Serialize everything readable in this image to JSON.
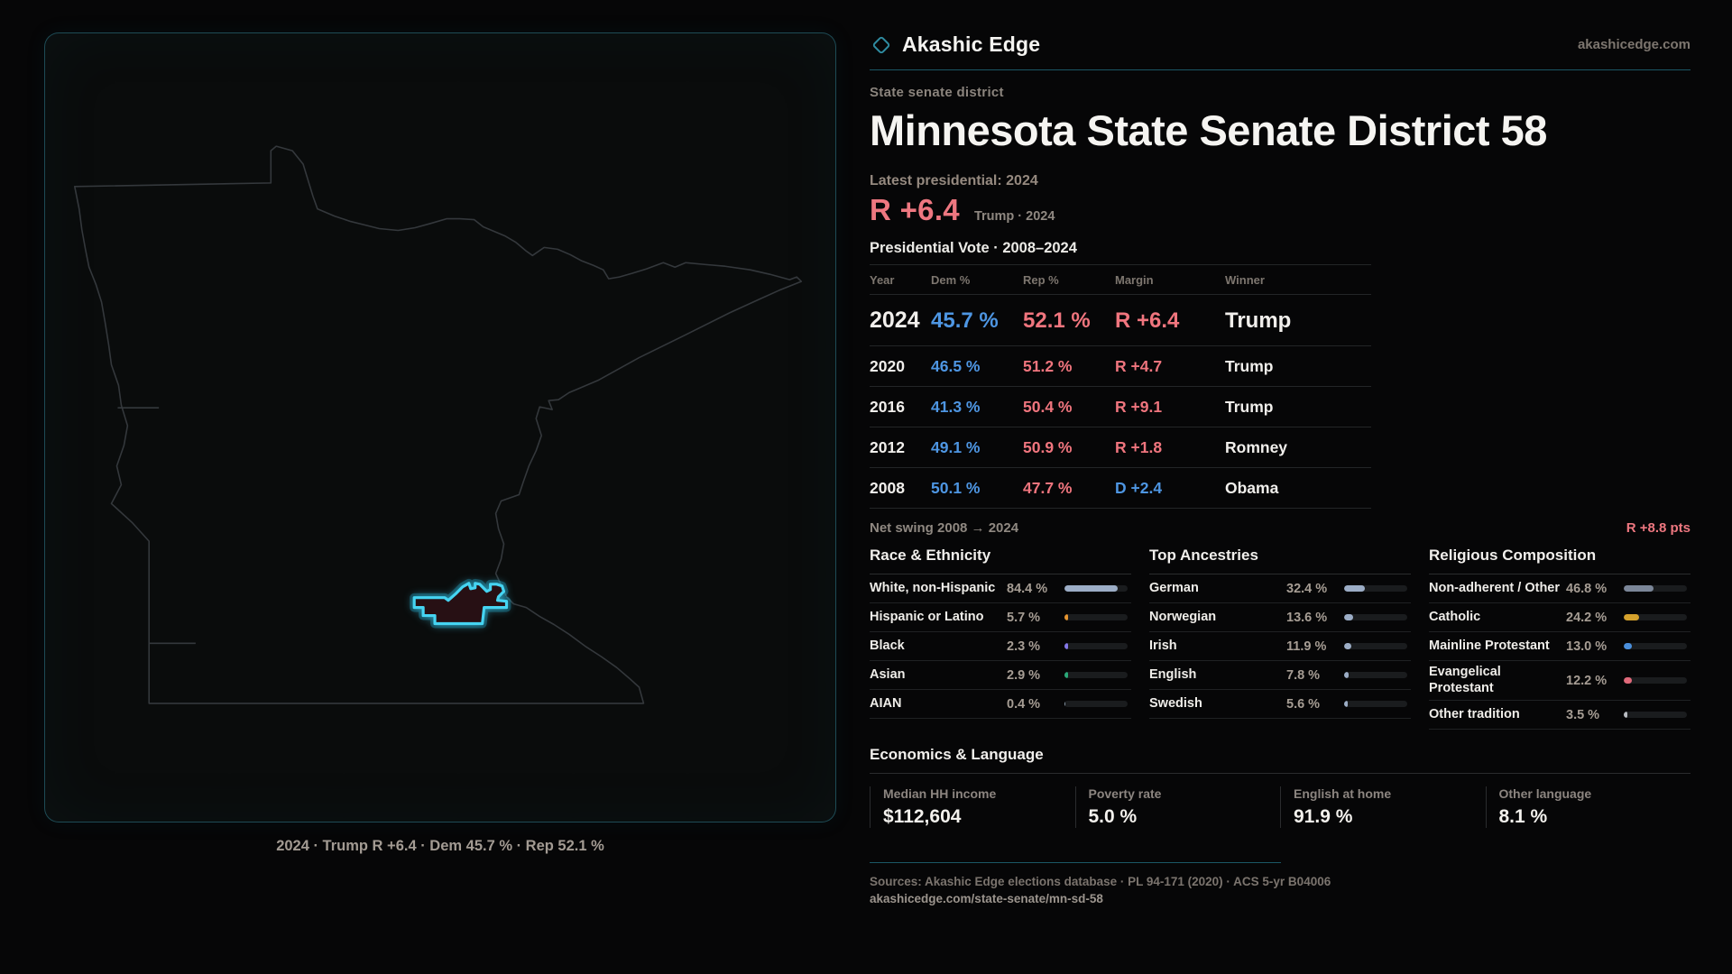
{
  "brand": {
    "name": "Akashic Edge",
    "domain": "akashicedge.com",
    "accent_teal": "#3ecdee",
    "accent_red": "#ee7780",
    "accent_blue": "#4e96e3"
  },
  "page": {
    "kicker": "State senate district",
    "title": "Minnesota State Senate District 58",
    "latest_label": "Latest presidential: 2024",
    "swing_value": "R +6.4",
    "swing_caption": "Trump · 2024",
    "table_title": "Presidential Vote · 2008–2024"
  },
  "map": {
    "caption": "2024 · Trump R +6.4 · Dem 45.7 % · Rep 52.1 %",
    "district_fill": "#271014",
    "district_stroke": "#45d4f2",
    "state_outline_color": "#34383c"
  },
  "vote_table": {
    "headers": [
      "Year",
      "Dem %",
      "Rep %",
      "Margin",
      "Winner"
    ],
    "rows": [
      {
        "year": "2024",
        "dem": "45.7 %",
        "rep": "52.1 %",
        "margin": "R +6.4",
        "margin_party": "R",
        "winner": "Trump",
        "highlight": true
      },
      {
        "year": "2020",
        "dem": "46.5 %",
        "rep": "51.2 %",
        "margin": "R +4.7",
        "margin_party": "R",
        "winner": "Trump",
        "highlight": false
      },
      {
        "year": "2016",
        "dem": "41.3 %",
        "rep": "50.4 %",
        "margin": "R +9.1",
        "margin_party": "R",
        "winner": "Trump",
        "highlight": false
      },
      {
        "year": "2012",
        "dem": "49.1 %",
        "rep": "50.9 %",
        "margin": "R +1.8",
        "margin_party": "R",
        "winner": "Romney",
        "highlight": false
      },
      {
        "year": "2008",
        "dem": "50.1 %",
        "rep": "47.7 %",
        "margin": "D +2.4",
        "margin_party": "D",
        "winner": "Obama",
        "highlight": false
      }
    ]
  },
  "net_swing": {
    "label": "Net swing 2008 → 2024",
    "value": "R +8.8 pts"
  },
  "demographics": [
    {
      "title": "Race & Ethnicity",
      "rows": [
        {
          "label": "White, non-Hispanic",
          "value": "84.4 %",
          "pct": 84.4,
          "color": "#9cadc6"
        },
        {
          "label": "Hispanic or Latino",
          "value": "5.7 %",
          "pct": 5.7,
          "color": "#e5942f"
        },
        {
          "label": "Black",
          "value": "2.3 %",
          "pct": 2.3,
          "color": "#8478e8"
        },
        {
          "label": "Asian",
          "value": "2.9 %",
          "pct": 2.9,
          "color": "#2aa878"
        },
        {
          "label": "AIAN",
          "value": "0.4 %",
          "pct": 0.4,
          "color": "#8a9aa8"
        }
      ]
    },
    {
      "title": "Top Ancestries",
      "rows": [
        {
          "label": "German",
          "value": "32.4 %",
          "pct": 32.4,
          "color": "#9cadc6"
        },
        {
          "label": "Norwegian",
          "value": "13.6 %",
          "pct": 13.6,
          "color": "#9cadc6"
        },
        {
          "label": "Irish",
          "value": "11.9 %",
          "pct": 11.9,
          "color": "#9cadc6"
        },
        {
          "label": "English",
          "value": "7.8 %",
          "pct": 7.8,
          "color": "#9cadc6"
        },
        {
          "label": "Swedish",
          "value": "5.6 %",
          "pct": 5.6,
          "color": "#9cadc6"
        }
      ]
    },
    {
      "title": "Religious Composition",
      "rows": [
        {
          "label": "Non-adherent / Other",
          "value": "46.8 %",
          "pct": 46.8,
          "color": "#7b8698"
        },
        {
          "label": "Catholic",
          "value": "24.2 %",
          "pct": 24.2,
          "color": "#d4a12c"
        },
        {
          "label": "Mainline Protestant",
          "value": "13.0 %",
          "pct": 13.0,
          "color": "#4a8fdc"
        },
        {
          "label": "Evangelical Protestant",
          "value": "12.2 %",
          "pct": 12.2,
          "color": "#e0697a"
        },
        {
          "label": "Other tradition",
          "value": "3.5 %",
          "pct": 3.5,
          "color": "#b9bcc2"
        }
      ]
    }
  ],
  "economics": {
    "title": "Economics & Language",
    "stats": [
      {
        "label": "Median HH income",
        "value": "$112,604"
      },
      {
        "label": "Poverty rate",
        "value": "5.0 %"
      },
      {
        "label": "English at home",
        "value": "91.9 %"
      },
      {
        "label": "Other language",
        "value": "8.1 %"
      }
    ]
  },
  "footer": {
    "sources": "Sources: Akashic Edge elections database · PL 94-171 (2020) · ACS 5-yr B04006",
    "permalink": "akashicedge.com/state-senate/mn-sd-58"
  }
}
